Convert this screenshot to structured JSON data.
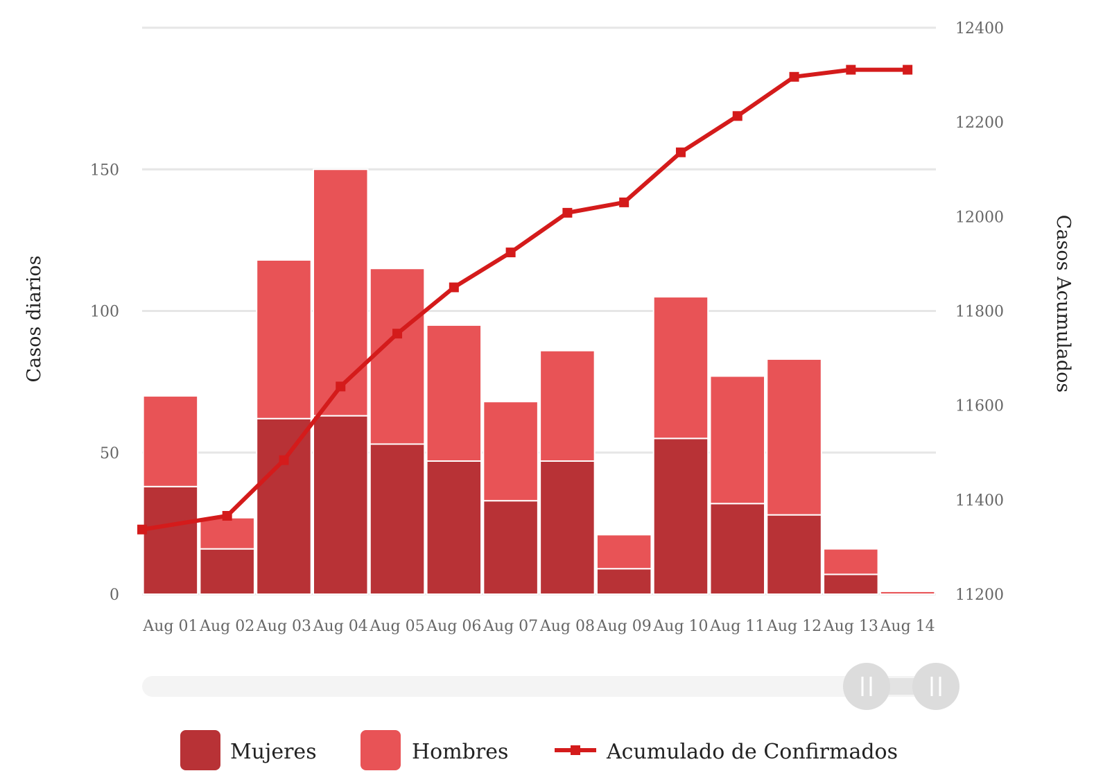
{
  "chart_data": {
    "type": "bar",
    "stacked": true,
    "categories": [
      "Aug 01",
      "Aug 02",
      "Aug 03",
      "Aug 04",
      "Aug 05",
      "Aug 06",
      "Aug 07",
      "Aug 08",
      "Aug 09",
      "Aug 10",
      "Aug 11",
      "Aug 12",
      "Aug 13",
      "Aug 14"
    ],
    "series": [
      {
        "name": "Mujeres",
        "type": "bar",
        "axis": "left",
        "color": "#b83236",
        "values": [
          38,
          16,
          62,
          63,
          53,
          47,
          33,
          47,
          9,
          55,
          32,
          28,
          7,
          0
        ]
      },
      {
        "name": "Hombres",
        "type": "bar",
        "axis": "left",
        "color": "#e85356",
        "values": [
          32,
          11,
          56,
          87,
          62,
          48,
          35,
          39,
          12,
          50,
          45,
          55,
          9,
          1
        ]
      },
      {
        "name": "Acumulado de Confirmados",
        "type": "line",
        "axis": "right",
        "color": "#d41b1b",
        "values": [
          11337,
          11366,
          11484,
          11640,
          11752,
          11850,
          11924,
          12008,
          12030,
          12136,
          12213,
          12296,
          12311,
          12311
        ]
      }
    ],
    "y_left": {
      "label": "Casos diarios",
      "range": [
        0,
        200
      ],
      "ticks": [
        "0",
        "50",
        "100",
        "150"
      ]
    },
    "y_right": {
      "label": "Casos Acumulados",
      "range": [
        11200,
        12400
      ],
      "ticks": [
        "11200",
        "11400",
        "11600",
        "11800",
        "12000",
        "12200",
        "12400"
      ]
    },
    "grid": true,
    "legend_position": "bottom",
    "navigator": true
  }
}
